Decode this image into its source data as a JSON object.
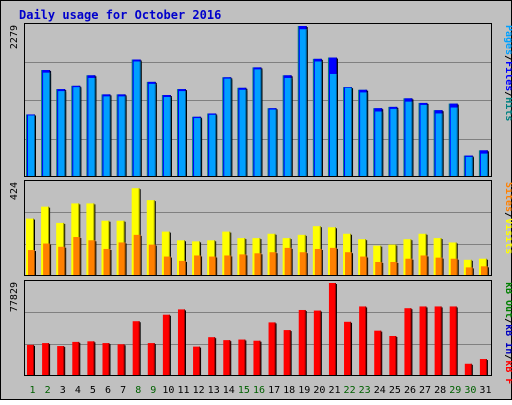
{
  "colors": {
    "background": "#c0c0c0",
    "frame": "#000000",
    "title": "#0000cc",
    "hits": "#008080",
    "files": "#0000ff",
    "pages": "#00a0ff",
    "visits": "#ffff00",
    "sites": "#ff8000",
    "kbin": "#0000c0",
    "kbout": "#008000",
    "kbf": "#ff0000",
    "weekday_label": "#008000",
    "weekend_label": "#006000"
  },
  "chart_data": {
    "title": "Daily usage for October 2016",
    "type": "bar",
    "categories": [
      "1",
      "2",
      "3",
      "4",
      "5",
      "6",
      "7",
      "8",
      "9",
      "10",
      "11",
      "12",
      "13",
      "14",
      "15",
      "16",
      "17",
      "18",
      "19",
      "20",
      "21",
      "22",
      "23",
      "24",
      "25",
      "26",
      "27",
      "28",
      "29",
      "30",
      "31"
    ],
    "weekend_days": [
      "1",
      "2",
      "8",
      "9",
      "15",
      "16",
      "22",
      "23",
      "29",
      "30"
    ],
    "panels": [
      {
        "name": "hits-files-pages",
        "max_label": "2279",
        "ylim": [
          0,
          2279
        ],
        "legend": [
          {
            "label": "Hits",
            "color_key": "hits"
          },
          {
            "label": "/",
            "color_key": "frame"
          },
          {
            "label": "Files",
            "color_key": "files"
          },
          {
            "label": "/",
            "color_key": "frame"
          },
          {
            "label": "Pages",
            "color_key": "pages"
          }
        ],
        "series": [
          {
            "name": "Hits",
            "color_key": "hits",
            "values": [
              935,
              1610,
              1320,
              1370,
              1530,
              1240,
              1240,
              1770,
              1430,
              1230,
              1320,
              900,
              950,
              1500,
              1340,
              1650,
              1030,
              1530,
              2279,
              1780,
              1800,
              1350,
              1310,
              1030,
              1050,
              1180,
              1110,
              1000,
              1100,
              310,
              390
            ]
          },
          {
            "name": "Files",
            "color_key": "files",
            "values": [
              935,
              1610,
              1320,
              1370,
              1530,
              1240,
              1240,
              1770,
              1430,
              1230,
              1320,
              900,
              950,
              1500,
              1340,
              1650,
              1030,
              1530,
              2279,
              1780,
              1800,
              1350,
              1310,
              1030,
              1050,
              1180,
              1110,
              1000,
              1100,
              310,
              390
            ]
          },
          {
            "name": "Pages",
            "color_key": "pages",
            "values": [
              920,
              1570,
              1290,
              1350,
              1490,
              1210,
              1210,
              1740,
              1400,
              1200,
              1290,
              880,
              930,
              1480,
              1310,
              1620,
              1010,
              1490,
              2230,
              1740,
              1550,
              1340,
              1270,
              980,
              1020,
              1130,
              1080,
              950,
              1040,
              290,
              340
            ]
          }
        ]
      },
      {
        "name": "visits-sites",
        "max_label": "424",
        "ylim": [
          0,
          424
        ],
        "legend": [
          {
            "label": "Visits",
            "color_key": "visits"
          },
          {
            "label": "/",
            "color_key": "frame"
          },
          {
            "label": "Sites",
            "color_key": "sites"
          }
        ],
        "series": [
          {
            "name": "Visits",
            "color_key": "visits",
            "values": [
              260,
              315,
              240,
              330,
              330,
              250,
              250,
              400,
              345,
              200,
              160,
              155,
              160,
              200,
              170,
              170,
              190,
              170,
              185,
              225,
              220,
              190,
              165,
              135,
              140,
              165,
              190,
              170,
              150,
              70,
              75
            ]
          },
          {
            "name": "Sites",
            "color_key": "sites",
            "values": [
              115,
              145,
              130,
              175,
              160,
              120,
              150,
              185,
              140,
              85,
              65,
              90,
              85,
              90,
              95,
              100,
              105,
              125,
              105,
              120,
              125,
              105,
              85,
              60,
              60,
              75,
              90,
              80,
              75,
              35,
              40
            ]
          }
        ]
      },
      {
        "name": "kbf-kbin-kbout",
        "max_label": "77829",
        "ylim": [
          0,
          77829
        ],
        "legend": [
          {
            "label": "kB F",
            "color_key": "kbf"
          },
          {
            "label": "/",
            "color_key": "frame"
          },
          {
            "label": "kB In",
            "color_key": "kbin"
          },
          {
            "label": "/",
            "color_key": "frame"
          },
          {
            "label": "kB Out",
            "color_key": "kbout"
          }
        ],
        "series": [
          {
            "name": "kB F",
            "color_key": "kbf",
            "values": [
              25500,
              27000,
              24500,
              28000,
              28500,
              27000,
              26000,
              45500,
              27000,
              51000,
              55500,
              24000,
              32000,
              29500,
              30000,
              29000,
              44500,
              38000,
              55000,
              54500,
              77829,
              45000,
              58000,
              37500,
              33000,
              56500,
              58000,
              58000,
              58000,
              9500,
              13500
            ]
          }
        ]
      }
    ]
  }
}
